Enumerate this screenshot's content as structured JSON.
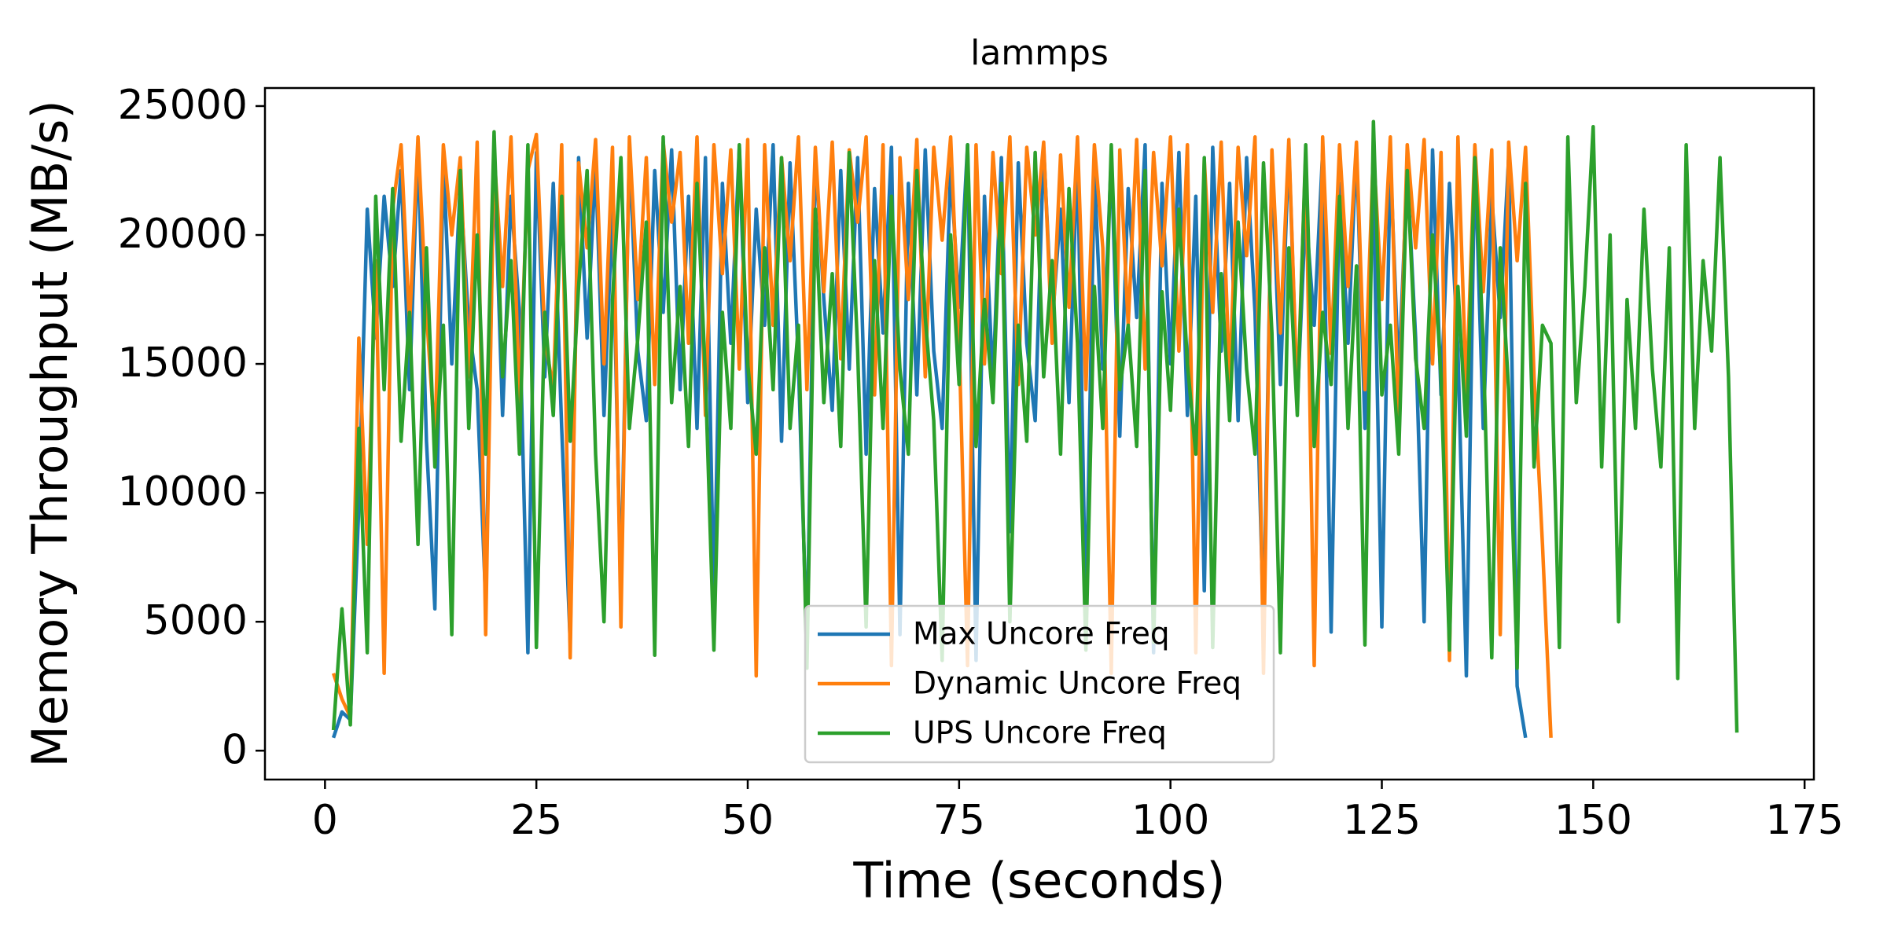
{
  "chart_data": {
    "type": "line",
    "title": "lammps",
    "x_label": "Time (seconds)",
    "y_label": "Memory Throughput (MB/s)",
    "x": [
      1,
      2,
      3,
      4,
      5,
      6,
      7,
      8,
      9,
      10,
      11,
      12,
      13,
      14,
      15,
      16,
      17,
      18,
      19,
      20,
      21,
      22,
      23,
      24,
      25,
      26,
      27,
      28,
      29,
      30,
      31,
      32,
      33,
      34,
      35,
      36,
      37,
      38,
      39,
      40,
      41,
      42,
      43,
      44,
      45,
      46,
      47,
      48,
      49,
      50,
      51,
      52,
      53,
      54,
      55,
      56,
      57,
      58,
      59,
      60,
      61,
      62,
      63,
      64,
      65,
      66,
      67,
      68,
      69,
      70,
      71,
      72,
      73,
      74,
      75,
      76,
      77,
      78,
      79,
      80,
      81,
      82,
      83,
      84,
      85,
      86,
      87,
      88,
      89,
      90,
      91,
      92,
      93,
      94,
      95,
      96,
      97,
      98,
      99,
      100,
      101,
      102,
      103,
      104,
      105,
      106,
      107,
      108,
      109,
      110,
      111,
      112,
      113,
      114,
      115,
      116,
      117,
      118,
      119,
      120,
      121,
      122,
      123,
      124,
      125,
      126,
      127,
      128,
      129,
      130,
      131,
      132,
      133,
      134,
      135,
      136,
      137,
      138,
      139,
      140,
      141,
      142,
      143,
      144,
      145,
      146,
      147,
      148,
      149,
      150,
      151,
      152,
      153,
      154,
      155,
      156,
      157,
      158,
      159,
      160,
      161,
      162,
      163,
      164,
      165,
      166,
      167
    ],
    "series": [
      {
        "name": "Max Uncore Freq",
        "color": "#1f77b4",
        "values": [
          500,
          1500,
          1200,
          9500,
          21000,
          16000,
          21500,
          18000,
          22500,
          14000,
          23500,
          12000,
          5500,
          23000,
          15000,
          22000,
          16500,
          14000,
          5800,
          23000,
          13000,
          21500,
          17000,
          3800,
          23200,
          14500,
          22000,
          12500,
          4200,
          23000,
          16000,
          22800,
          13000,
          21000,
          6000,
          23400,
          15500,
          12800,
          22500,
          17000,
          23300,
          14000,
          21500,
          12500,
          23000,
          5600,
          22000,
          15800,
          23400,
          13500,
          21000,
          16500,
          23500,
          12000,
          22800,
          15000,
          4000,
          23200,
          17500,
          13200,
          22500,
          14800,
          23000,
          11500,
          21800,
          16200,
          23400,
          4500,
          22000,
          13800,
          23300,
          15500,
          12500,
          22600,
          17200,
          23500,
          3500,
          21500,
          14200,
          23000,
          8500,
          22800,
          15800,
          12800,
          23400,
          16500,
          21000,
          13500,
          23200,
          5000,
          22500,
          14800,
          23000,
          12200,
          21800,
          16800,
          23500,
          3800,
          22000,
          15000,
          23200,
          13000,
          21500,
          6200,
          23400,
          15500,
          22000,
          12800,
          23000,
          17000,
          4800,
          22800,
          14200,
          23500,
          13500,
          21000,
          16500,
          23200,
          4600,
          22000,
          15800,
          23400,
          12500,
          21800,
          4800,
          23000,
          14500,
          22500,
          16000,
          5000,
          23300,
          13800,
          22000,
          15500,
          2900,
          23200,
          12500,
          21500,
          16800,
          23000,
          2500,
          500,
          null,
          null,
          null,
          null,
          null,
          null,
          null,
          null,
          null,
          null,
          null,
          null,
          null,
          null,
          null,
          null,
          null,
          null,
          null,
          null,
          null,
          null,
          null,
          null,
          null
        ]
      },
      {
        "name": "Dynamic Uncore Freq",
        "color": "#ff7f0e",
        "values": [
          3000,
          2000,
          1300,
          16000,
          8000,
          19000,
          3000,
          21000,
          23500,
          16500,
          23800,
          17000,
          12000,
          23500,
          20000,
          23000,
          14500,
          23600,
          4500,
          23200,
          18000,
          23800,
          13500,
          22500,
          23900,
          16000,
          14000,
          23500,
          3600,
          22800,
          19500,
          23700,
          15000,
          23400,
          4800,
          23800,
          17500,
          23000,
          14200,
          23600,
          20500,
          23200,
          15800,
          23800,
          13000,
          23500,
          18500,
          23300,
          14800,
          23700,
          2900,
          23500,
          16500,
          23000,
          19000,
          23800,
          14000,
          23400,
          17800,
          23600,
          15200,
          23300,
          20500,
          23800,
          13800,
          23500,
          3300,
          23000,
          17500,
          23700,
          14500,
          23400,
          19800,
          23800,
          16000,
          3300,
          23500,
          15000,
          23200,
          18500,
          23800,
          14200,
          23400,
          20000,
          23600,
          15800,
          23100,
          17200,
          23800,
          14000,
          23500,
          19500,
          3000,
          23300,
          16500,
          23700,
          14800,
          23200,
          18800,
          23800,
          15500,
          23500,
          3800,
          22900,
          17000,
          23600,
          14200,
          23400,
          19200,
          23800,
          3000,
          23300,
          16200,
          23700,
          13600,
          23200,
          3300,
          23800,
          15400,
          23500,
          18000,
          23600,
          14000,
          23300,
          17500,
          23800,
          12500,
          23500,
          19500,
          23700,
          15000,
          23200,
          3500,
          23800,
          13800,
          23500,
          17800,
          23300,
          4500,
          23600,
          19000,
          23400,
          14500,
          8000,
          500,
          null,
          null,
          null,
          null,
          null,
          null,
          null,
          null,
          null,
          null,
          null,
          null,
          null,
          null,
          null,
          null,
          null,
          null,
          null,
          null,
          null,
          null
        ]
      },
      {
        "name": "UPS Uncore Freq",
        "color": "#2ca02c",
        "values": [
          800,
          5500,
          1000,
          12500,
          3800,
          21500,
          14000,
          21800,
          12000,
          17000,
          8000,
          19500,
          11000,
          16500,
          4500,
          22500,
          12500,
          20000,
          11500,
          24000,
          14500,
          19000,
          11500,
          23500,
          4000,
          17000,
          13000,
          21500,
          12000,
          18000,
          22500,
          11500,
          5000,
          17500,
          23000,
          12500,
          16000,
          20500,
          3700,
          23800,
          13500,
          18000,
          11800,
          22000,
          14500,
          3900,
          17000,
          12500,
          23500,
          15000,
          11500,
          19500,
          14000,
          23000,
          12500,
          16500,
          3200,
          21000,
          13500,
          18500,
          11800,
          23200,
          15500,
          4800,
          19000,
          12500,
          21500,
          14800,
          11500,
          22500,
          16800,
          12800,
          3500,
          20000,
          14200,
          23500,
          11800,
          17500,
          13500,
          22000,
          5000,
          16500,
          12000,
          23200,
          14500,
          19000,
          11500,
          21800,
          15800,
          3900,
          18000,
          12500,
          23500,
          14000,
          16500,
          11800,
          22500,
          4200,
          17800,
          13200,
          21000,
          15000,
          11500,
          23000,
          4000,
          18500,
          12800,
          20500,
          14800,
          11500,
          22800,
          16200,
          3800,
          19500,
          13000,
          23500,
          11800,
          17000,
          14200,
          21500,
          12500,
          18800,
          4100,
          24400,
          13800,
          16500,
          11500,
          22500,
          15200,
          12500,
          20000,
          14500,
          3900,
          18000,
          12200,
          23000,
          15800,
          3600,
          19500,
          14000,
          3200,
          22000,
          11000,
          16500,
          15800,
          4000,
          23800,
          13500,
          18000,
          24200,
          11000,
          20000,
          5000,
          17500,
          12500,
          21000,
          14800,
          11000,
          19500,
          2800,
          23500,
          12500,
          19000,
          15500,
          23000,
          14500,
          700
        ]
      }
    ],
    "xlim": [
      -7.1,
      176.1
    ],
    "xticks": [
      0,
      25,
      50,
      75,
      100,
      125,
      150,
      175
    ],
    "ylim": [
      -1120,
      25700
    ],
    "yticks": [
      0,
      5000,
      10000,
      15000,
      20000,
      25000
    ],
    "grid": false,
    "legend": "lower center"
  }
}
